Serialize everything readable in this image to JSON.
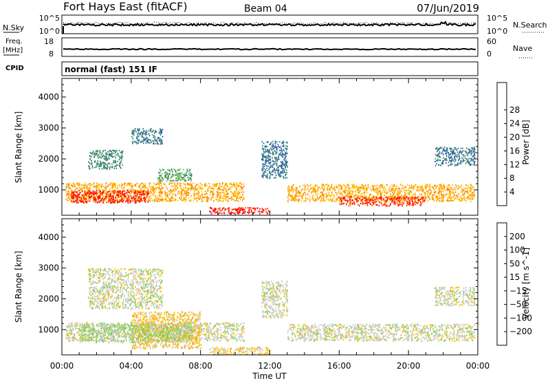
{
  "header": {
    "station": "Fort Hays East (fitACF)",
    "beam": "Beam 04",
    "date": "07/Jun/2019"
  },
  "summary": {
    "nsky_label": "N.Sky",
    "nsky_ticks": [
      "10^5",
      "10^0"
    ],
    "nsearch_label": "N.Search",
    "nsearch_ticks": [
      "10^5",
      "10^0"
    ],
    "freq_label": "Freq.",
    "freq_unit": "[MHz]",
    "freq_ticks": [
      "18",
      "8"
    ],
    "nave_label": "Nave",
    "nave_ticks": [
      "60",
      "0"
    ],
    "cpid_label": "CPID",
    "cpid_text": "normal (fast) 151 IF"
  },
  "colors": {
    "power": [
      "#0000ff",
      "#2255aa",
      "#3b7a8c",
      "#4a9a5a",
      "#7ac043",
      "#ffc000",
      "#ff8c00",
      "#ff4500",
      "#ff0000"
    ],
    "velocity": [
      "#ff0000",
      "#ff4000",
      "#ff8c00",
      "#ffc000",
      "#c8c8c8",
      "#7bd23c",
      "#3c9650",
      "#2a5aa0",
      "#0000ff"
    ]
  },
  "chart_data": [
    {
      "type": "heatmap",
      "title": "",
      "xlabel": "",
      "ylabel": "Slant Range [km]",
      "x_ticks": [
        "00:00",
        "04:00",
        "08:00",
        "12:00",
        "16:00",
        "20:00",
        "00:00"
      ],
      "y_ticks": [
        "1000",
        "2000",
        "3000",
        "4000"
      ],
      "xlim": [
        0,
        24
      ],
      "ylim": [
        180,
        4600
      ],
      "colorbar": {
        "label": "Power [dB]",
        "ticks": [
          "4",
          "8",
          "12",
          "16",
          "20",
          "24",
          "28"
        ],
        "range": [
          0,
          30
        ]
      },
      "echo_regions": [
        {
          "hours": [
            0.2,
            10.5
          ],
          "range_km": [
            650,
            1250
          ],
          "power_db": 20
        },
        {
          "hours": [
            0.5,
            5.0
          ],
          "range_km": [
            600,
            1000
          ],
          "power_db": 28
        },
        {
          "hours": [
            5.5,
            7.5
          ],
          "range_km": [
            1300,
            1700
          ],
          "power_db": 12
        },
        {
          "hours": [
            1.5,
            3.5
          ],
          "range_km": [
            1700,
            2300
          ],
          "power_db": 10
        },
        {
          "hours": [
            4.0,
            5.8
          ],
          "range_km": [
            2500,
            3000
          ],
          "power_db": 8
        },
        {
          "hours": [
            8.5,
            12.0
          ],
          "range_km": [
            250,
            450
          ],
          "power_db": 28
        },
        {
          "hours": [
            11.5,
            13.0
          ],
          "range_km": [
            1400,
            2600
          ],
          "power_db": 8
        },
        {
          "hours": [
            13.0,
            23.8
          ],
          "range_km": [
            650,
            1200
          ],
          "power_db": 20
        },
        {
          "hours": [
            16.0,
            21.0
          ],
          "range_km": [
            500,
            800
          ],
          "power_db": 26
        },
        {
          "hours": [
            21.5,
            23.8
          ],
          "range_km": [
            1800,
            2400
          ],
          "power_db": 8
        }
      ]
    },
    {
      "type": "heatmap",
      "title": "",
      "xlabel": "Time UT",
      "ylabel": "Slant Range [km]",
      "x_ticks": [
        "00:00",
        "04:00",
        "08:00",
        "12:00",
        "16:00",
        "20:00",
        "00:00"
      ],
      "y_ticks": [
        "1000",
        "2000",
        "3000",
        "4000"
      ],
      "xlim": [
        0,
        24
      ],
      "ylim": [
        180,
        4600
      ],
      "colorbar": {
        "label": "Velocity [m s^-1]",
        "ticks": [
          "200",
          "100",
          "50",
          "15",
          "-15",
          "-50",
          "-100",
          "-200"
        ],
        "range": [
          -250,
          250
        ]
      },
      "echo_regions": [
        {
          "hours": [
            0.2,
            10.5
          ],
          "range_km": [
            650,
            1250
          ],
          "velocity_ms": 0
        },
        {
          "hours": [
            4.0,
            8.0
          ],
          "range_km": [
            400,
            1600
          ],
          "velocity_ms": -50
        },
        {
          "hours": [
            1.0,
            7.5
          ],
          "range_km": [
            600,
            1200
          ],
          "velocity_ms": 30
        },
        {
          "hours": [
            8.5,
            12.0
          ],
          "range_km": [
            200,
            450
          ],
          "velocity_ms": -40
        },
        {
          "hours": [
            1.5,
            5.8
          ],
          "range_km": [
            1700,
            3000
          ],
          "velocity_ms": 0
        },
        {
          "hours": [
            11.5,
            13.0
          ],
          "range_km": [
            1400,
            2600
          ],
          "velocity_ms": 0
        },
        {
          "hours": [
            13.0,
            23.8
          ],
          "range_km": [
            650,
            1200
          ],
          "velocity_ms": 0
        },
        {
          "hours": [
            21.5,
            23.8
          ],
          "range_km": [
            1800,
            2400
          ],
          "velocity_ms": 0
        }
      ]
    }
  ]
}
